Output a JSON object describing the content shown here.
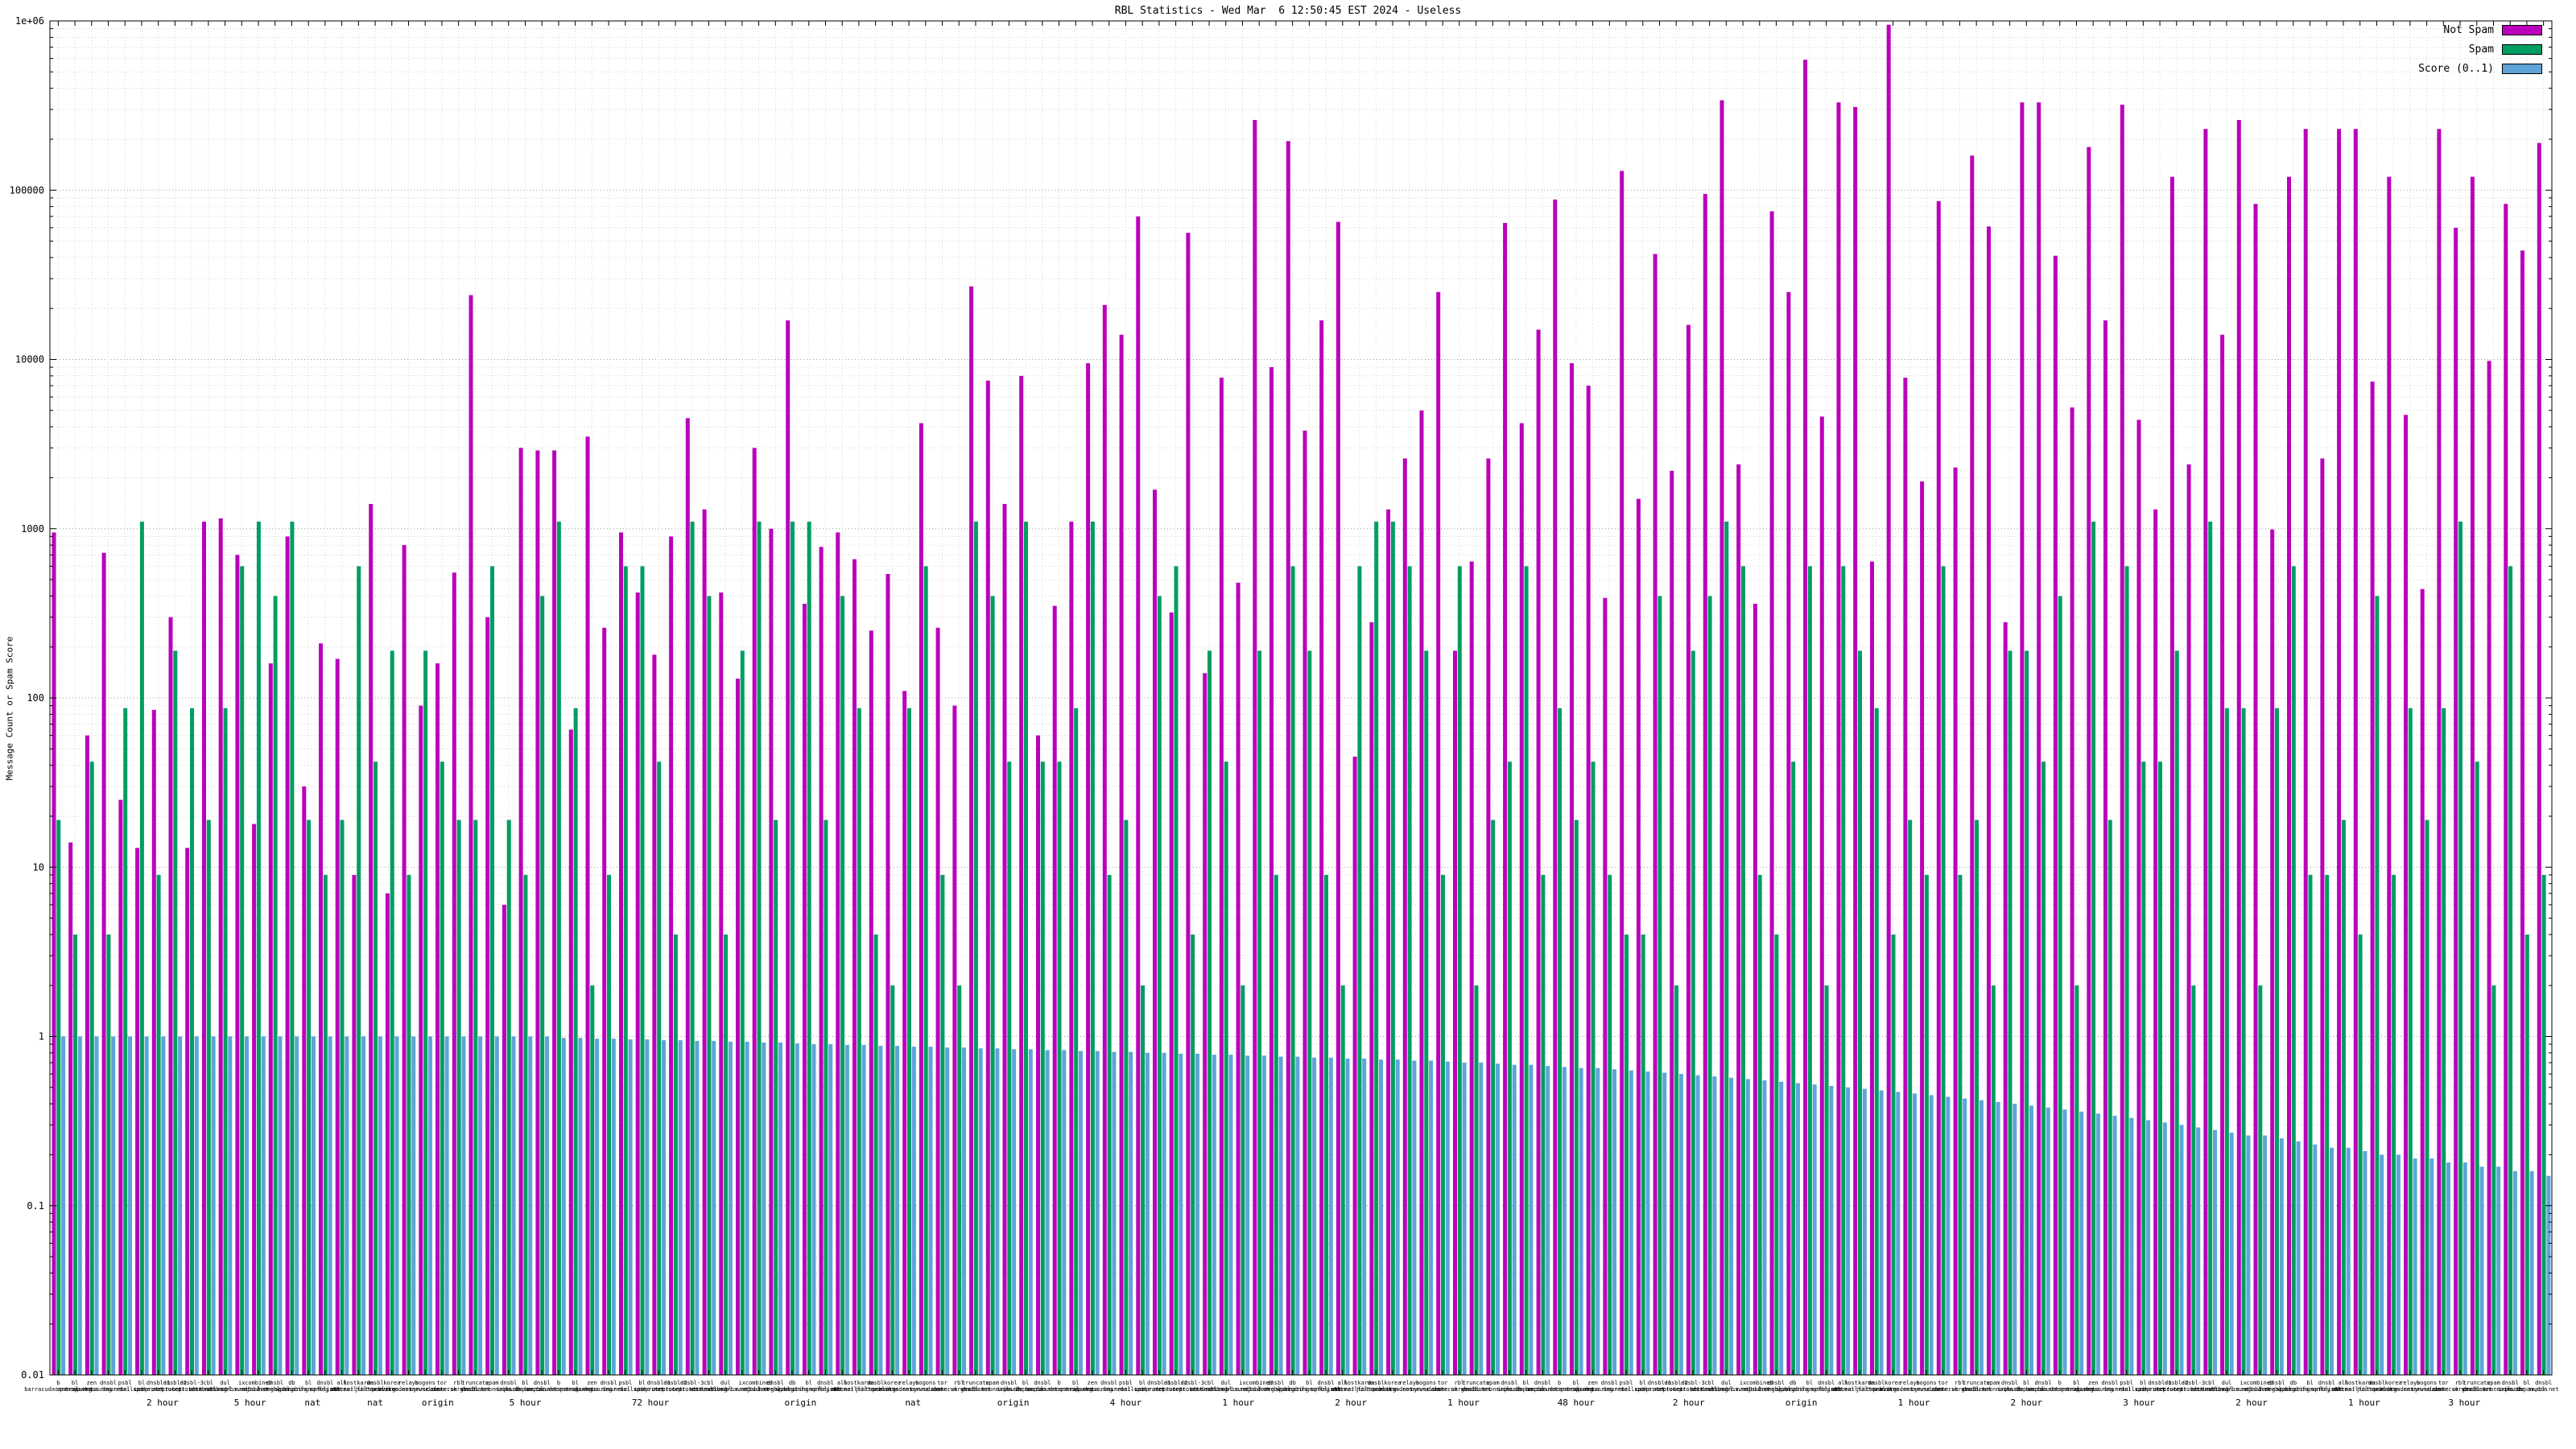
{
  "chart_data": {
    "type": "bar",
    "title": "RBL Statistics - Wed Mar  6 12:50:45 EST 2024 - Useless",
    "ylabel": "Message Count or Spam Score",
    "xlabel": "",
    "y_scale": "log",
    "ylim": [
      0.01,
      1000000
    ],
    "y_ticks": [
      "0.01",
      "0.1",
      "1",
      "10",
      "100",
      "1000",
      "10000",
      "100000",
      "1e+06"
    ],
    "grid": true,
    "legend_position": "top-right",
    "series": [
      {
        "name": "Not Spam",
        "color": "#bb00bb",
        "values": [
          950,
          14,
          60,
          720,
          25,
          13,
          85,
          300,
          13,
          1100,
          1150,
          700,
          18,
          160,
          900,
          30,
          210,
          170,
          9,
          1400,
          7,
          800,
          90,
          160,
          550,
          24000,
          300,
          6,
          3000,
          2900,
          2900,
          65,
          3500,
          260,
          950,
          420,
          180,
          900,
          4500,
          1300,
          420,
          130,
          3000,
          1000,
          17000,
          360,
          780,
          950,
          660,
          250,
          540,
          110,
          4200,
          260,
          90,
          27000,
          7500,
          1400,
          8000,
          60,
          350,
          1100,
          9500,
          21000,
          14000,
          70000,
          1700,
          320,
          56000,
          140,
          7800,
          480,
          260000,
          9000,
          195000,
          3800,
          17000,
          65000,
          45,
          280,
          1300,
          2600,
          5000,
          25000,
          190,
          640,
          2600,
          64000,
          4200,
          15000,
          88000,
          9500,
          7000,
          390,
          130000,
          1500,
          42000,
          2200,
          16000,
          95000,
          340000,
          2400,
          360,
          75000,
          25000,
          590000,
          4600,
          330000,
          310000,
          640,
          950000,
          7800,
          1900,
          86000,
          2300,
          160000,
          61000,
          280,
          330000,
          330000,
          41000,
          5200,
          180000,
          17000,
          320000,
          4400,
          1300,
          120000,
          2400,
          230000,
          14000,
          260000,
          83000,
          990,
          120000,
          230000,
          2600,
          230000,
          230000,
          7400,
          120000,
          4700,
          440,
          230000,
          60000,
          120000,
          9800,
          83000,
          44000,
          190000
        ]
      },
      {
        "name": "Spam",
        "color": "#009e60",
        "values": [
          19,
          4,
          42,
          4,
          87,
          1100,
          9,
          190,
          87,
          19,
          87,
          600,
          1100,
          400,
          1100,
          19,
          9,
          19,
          600,
          42,
          190,
          9,
          190,
          42,
          19,
          19,
          600,
          19,
          9,
          400,
          1100,
          87,
          2,
          9,
          600,
          600,
          42,
          4,
          1100,
          400,
          4,
          190,
          1100,
          19,
          1100,
          1100,
          19,
          400,
          87,
          4,
          2,
          87,
          600,
          9,
          2,
          1100,
          400,
          42,
          1100,
          42,
          42,
          87,
          1100,
          9,
          19,
          2,
          400,
          600,
          4,
          190,
          42,
          2,
          190,
          9,
          600,
          190,
          9,
          2,
          600,
          1100,
          1100,
          600,
          190,
          9,
          600,
          2,
          19,
          42,
          600,
          9,
          87,
          19,
          42,
          9,
          4,
          4,
          400,
          2,
          190,
          400,
          1100,
          600,
          9,
          4,
          42,
          600,
          2,
          600,
          190,
          87,
          4,
          19,
          9,
          600,
          9,
          19,
          2,
          190,
          190,
          42,
          400,
          2,
          1100,
          19,
          600,
          42,
          42,
          190,
          2,
          1100,
          87,
          87,
          2,
          87,
          600,
          9,
          9,
          19,
          4,
          400,
          9,
          87,
          19,
          87,
          1100,
          42,
          2,
          600,
          4,
          9
        ]
      },
      {
        "name": "Score (0..1)",
        "color": "#5ea4d8",
        "values": [
          1.0,
          1.0,
          1.0,
          1.0,
          1.0,
          1.0,
          1.0,
          1.0,
          1.0,
          1.0,
          1.0,
          1.0,
          1.0,
          1.0,
          1.0,
          1.0,
          1.0,
          1.0,
          1.0,
          1.0,
          1.0,
          1.0,
          1.0,
          1.0,
          1.0,
          1.0,
          1.0,
          1.0,
          1.0,
          1.0,
          0.98,
          0.98,
          0.97,
          0.97,
          0.96,
          0.96,
          0.95,
          0.95,
          0.94,
          0.94,
          0.93,
          0.93,
          0.92,
          0.92,
          0.91,
          0.9,
          0.9,
          0.89,
          0.89,
          0.88,
          0.88,
          0.87,
          0.87,
          0.86,
          0.86,
          0.85,
          0.85,
          0.84,
          0.84,
          0.83,
          0.83,
          0.82,
          0.82,
          0.81,
          0.81,
          0.8,
          0.8,
          0.79,
          0.79,
          0.78,
          0.78,
          0.77,
          0.77,
          0.76,
          0.76,
          0.75,
          0.75,
          0.74,
          0.74,
          0.73,
          0.73,
          0.72,
          0.72,
          0.71,
          0.7,
          0.7,
          0.69,
          0.68,
          0.68,
          0.67,
          0.66,
          0.65,
          0.65,
          0.64,
          0.63,
          0.62,
          0.61,
          0.6,
          0.59,
          0.58,
          0.57,
          0.56,
          0.55,
          0.54,
          0.53,
          0.52,
          0.51,
          0.5,
          0.49,
          0.48,
          0.47,
          0.46,
          0.45,
          0.44,
          0.43,
          0.42,
          0.41,
          0.4,
          0.39,
          0.38,
          0.37,
          0.36,
          0.35,
          0.34,
          0.33,
          0.32,
          0.31,
          0.3,
          0.29,
          0.28,
          0.27,
          0.26,
          0.26,
          0.25,
          0.24,
          0.23,
          0.22,
          0.22,
          0.21,
          0.2,
          0.2,
          0.19,
          0.19,
          0.18,
          0.18,
          0.17,
          0.17,
          0.16,
          0.16,
          0.15
        ]
      }
    ],
    "x_tick_label_pool": [
      "b.barracudacentral.org",
      "bl.spamcop.net",
      "zen.spamhaus.org",
      "dnsbl.sorbs.net",
      "psbl.surriel.com",
      "bl.mailspike.net",
      "dnsbl-1.uceprotect.net",
      "dnsbl-2.uceprotect.net",
      "dnsbl-3.uceprotect.net",
      "cbl.abuseat.org",
      "dul.dnsbl.sorbs.net",
      "ix.dnsbl.manitu.net",
      "combined.njabl.org",
      "dnsbl.dronebl.org",
      "db.wpbl.info",
      "bl.spameatingmonkey.net",
      "dnsbl.spfbl.net",
      "all.s5h.net",
      "hostkarma.junkemailfilter.com",
      "dnsbl.justspam.org",
      "korea.services.net",
      "relays.bl.kundenserver.de",
      "bogons.cymru.com",
      "tor.dan.me.uk",
      "rbl.interserver.net",
      "truncate.gbudb.net",
      "spam.dnsbl.anonmails.de",
      "dnsbl.inps.de",
      "bl.nordspam.com",
      "dnsbl.zapbl.net"
    ],
    "x_group_labels": [
      {
        "pos": 0.045,
        "text": "2 hour"
      },
      {
        "pos": 0.08,
        "text": "5 hour"
      },
      {
        "pos": 0.105,
        "text": "nat"
      },
      {
        "pos": 0.13,
        "text": "nat"
      },
      {
        "pos": 0.155,
        "text": "origin"
      },
      {
        "pos": 0.19,
        "text": "5 hour"
      },
      {
        "pos": 0.24,
        "text": "72 hour"
      },
      {
        "pos": 0.3,
        "text": "origin"
      },
      {
        "pos": 0.345,
        "text": "nat"
      },
      {
        "pos": 0.385,
        "text": "origin"
      },
      {
        "pos": 0.43,
        "text": "4 hour"
      },
      {
        "pos": 0.475,
        "text": "1 hour"
      },
      {
        "pos": 0.52,
        "text": "2 hour"
      },
      {
        "pos": 0.565,
        "text": "1 hour"
      },
      {
        "pos": 0.61,
        "text": "48 hour"
      },
      {
        "pos": 0.655,
        "text": "2 hour"
      },
      {
        "pos": 0.7,
        "text": "origin"
      },
      {
        "pos": 0.745,
        "text": "1 hour"
      },
      {
        "pos": 0.79,
        "text": "2 hour"
      },
      {
        "pos": 0.835,
        "text": "3 hour"
      },
      {
        "pos": 0.88,
        "text": "2 hour"
      },
      {
        "pos": 0.925,
        "text": "1 hour"
      },
      {
        "pos": 0.965,
        "text": "3 hour"
      }
    ]
  }
}
